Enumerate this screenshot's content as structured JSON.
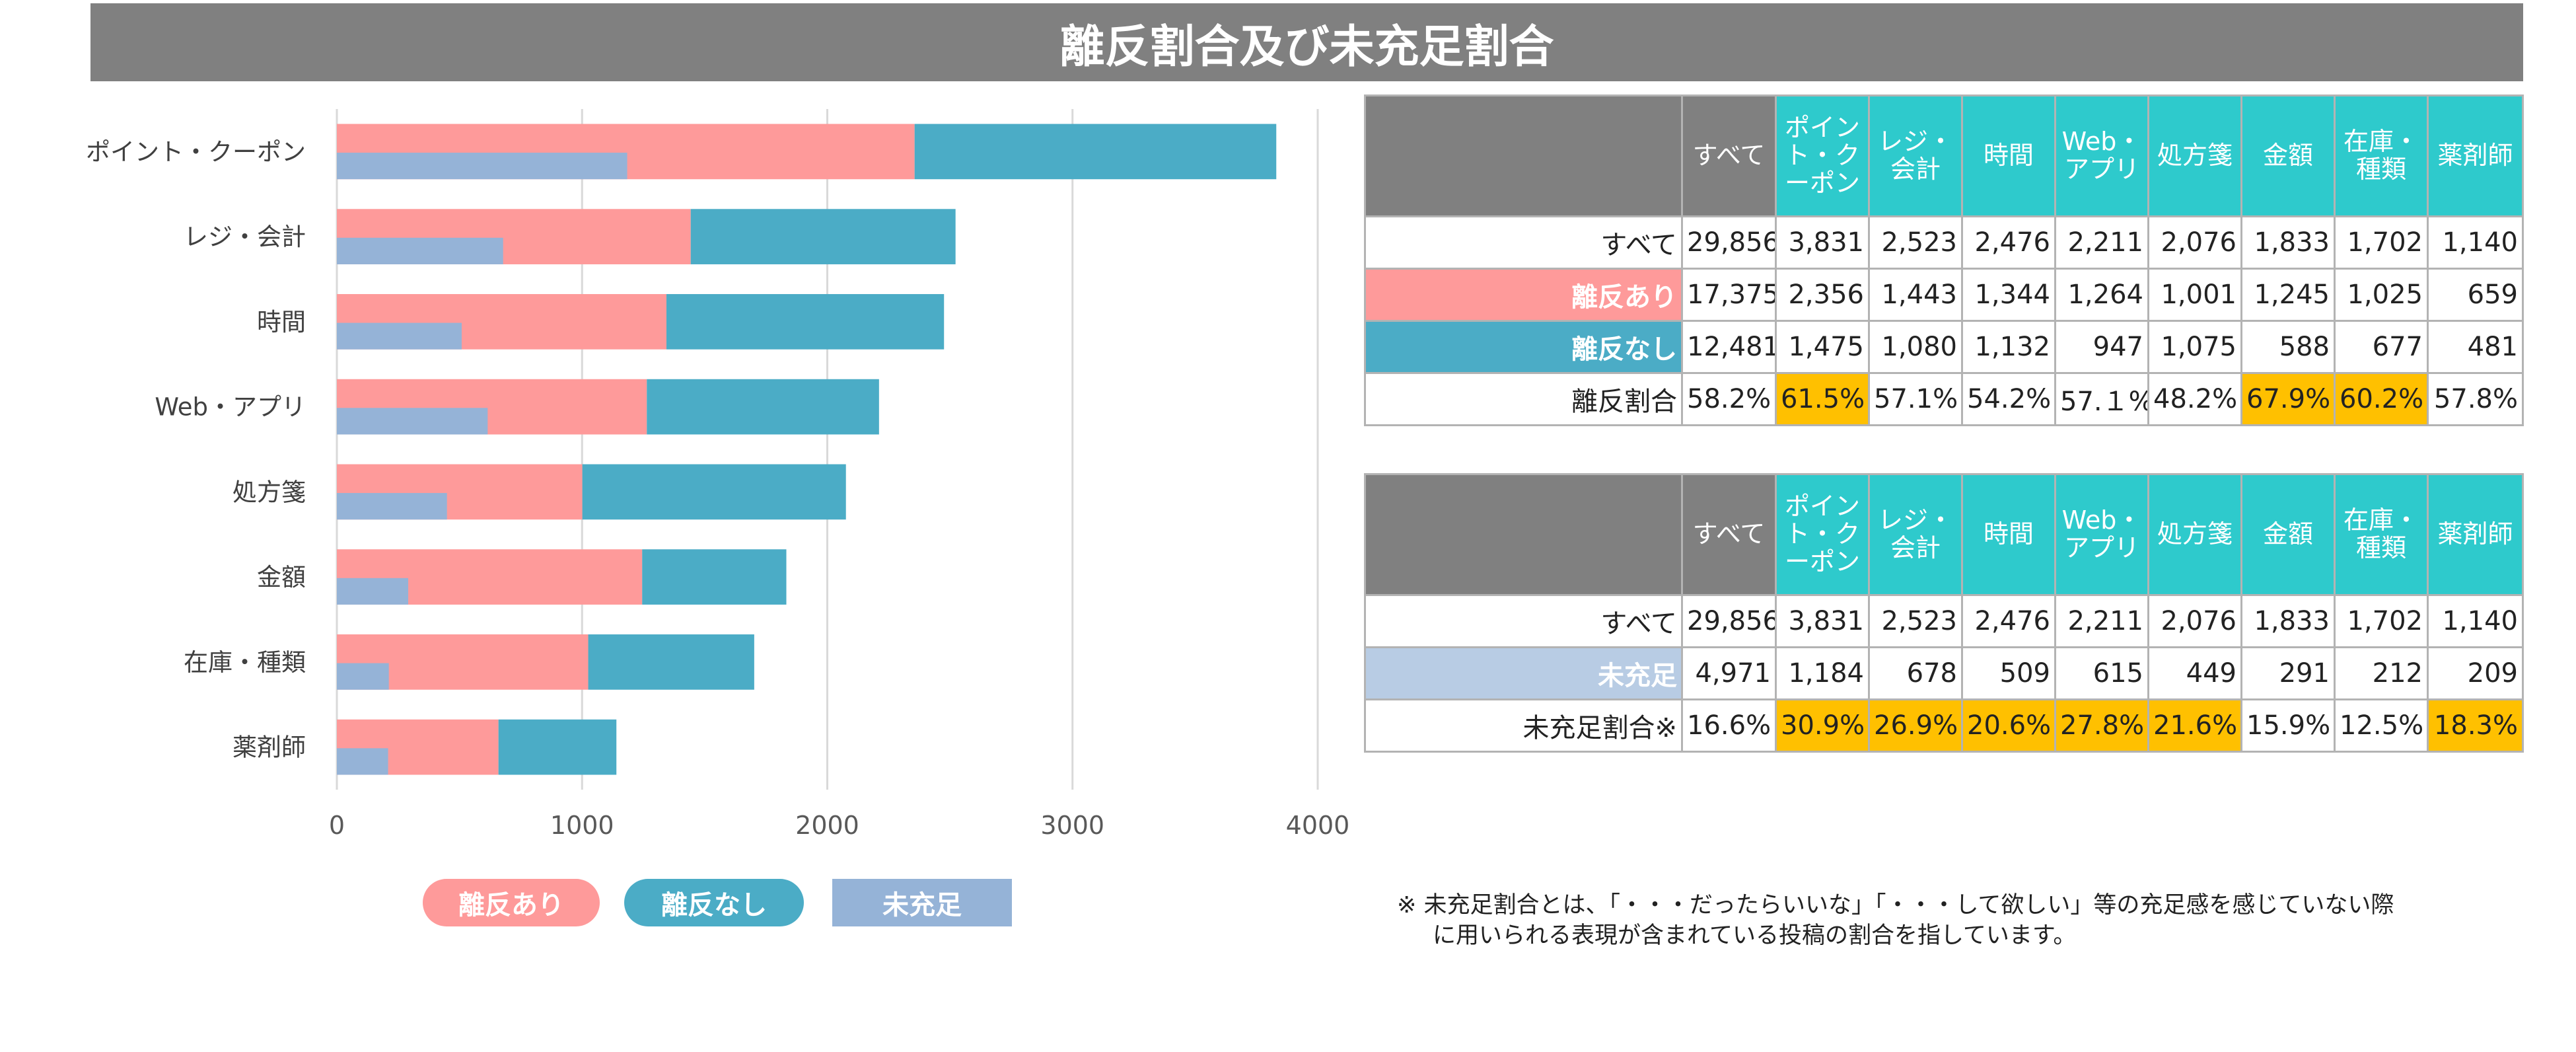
{
  "title": "離反割合及び未充足割合",
  "chart_data": {
    "type": "bar",
    "orientation": "horizontal",
    "categories": [
      "ポイント・クーポン",
      "レジ・会計",
      "時間",
      "Web・アプリ",
      "処方箋",
      "金額",
      "在庫・種類",
      "薬剤師"
    ],
    "series": [
      {
        "name": "離反あり",
        "values": [
          2356,
          1443,
          1344,
          1264,
          1001,
          1245,
          1025,
          659
        ],
        "color": "#fe9a9a",
        "stack": "main"
      },
      {
        "name": "離反なし",
        "values": [
          1475,
          1080,
          1132,
          947,
          1075,
          588,
          677,
          481
        ],
        "color": "#4bacc6",
        "stack": "main"
      },
      {
        "name": "未充足",
        "values": [
          1184,
          678,
          509,
          615,
          449,
          291,
          212,
          209
        ],
        "color": "#95b3d7",
        "stack": "overlay"
      }
    ],
    "xlim": [
      0,
      4000
    ],
    "xticks": [
      "0",
      "1000",
      "2000",
      "3000",
      "4000"
    ],
    "grid": true,
    "legend_position": "bottom"
  },
  "table1": {
    "headers": [
      "すべて",
      "ポイント・クーポン",
      "レジ・会計",
      "時間",
      "Web・アプリ",
      "処方箋",
      "金額",
      "在庫・種類",
      "薬剤師"
    ],
    "rows": [
      {
        "label": "すべて",
        "style": "plain",
        "values": [
          "29,856",
          "3,831",
          "2,523",
          "2,476",
          "2,211",
          "2,076",
          "1,833",
          "1,702",
          "1,140"
        ]
      },
      {
        "label": "離反あり",
        "style": "pink",
        "values": [
          "17,375",
          "2,356",
          "1,443",
          "1,344",
          "1,264",
          "1,001",
          "1,245",
          "1,025",
          "659"
        ]
      },
      {
        "label": "離反なし",
        "style": "teal",
        "values": [
          "12,481",
          "1,475",
          "1,080",
          "1,132",
          "947",
          "1,075",
          "588",
          "677",
          "481"
        ]
      },
      {
        "label": "離反割合",
        "style": "plain",
        "values": [
          "58.2%",
          "61.5%",
          "57.1%",
          "54.2%",
          "57.１%",
          "48.2%",
          "67.9%",
          "60.2%",
          "57.8%"
        ],
        "highlight": [
          1,
          6,
          7
        ]
      }
    ]
  },
  "table2": {
    "headers": [
      "すべて",
      "ポイント・クーポン",
      "レジ・会計",
      "時間",
      "Web・アプリ",
      "処方箋",
      "金額",
      "在庫・種類",
      "薬剤師"
    ],
    "rows": [
      {
        "label": "すべて",
        "style": "plain",
        "values": [
          "29,856",
          "3,831",
          "2,523",
          "2,476",
          "2,211",
          "2,076",
          "1,833",
          "1,702",
          "1,140"
        ]
      },
      {
        "label": "未充足",
        "style": "lightblue",
        "values": [
          "4,971",
          "1,184",
          "678",
          "509",
          "615",
          "449",
          "291",
          "212",
          "209"
        ]
      },
      {
        "label": "未充足割合※",
        "style": "plain",
        "values": [
          "16.6%",
          "30.9%",
          "26.9%",
          "20.6%",
          "27.8%",
          "21.6%",
          "15.9%",
          "12.5%",
          "18.3%"
        ],
        "highlight": [
          1,
          2,
          3,
          4,
          5,
          8
        ]
      }
    ]
  },
  "footnote": {
    "line1": "※ 未充足割合とは、「・・・だったらいいな」「・・・して欲しい」等の充足感を感じていない際",
    "line2": "に用いられる表現が含まれている投稿の割合を指しています。"
  }
}
